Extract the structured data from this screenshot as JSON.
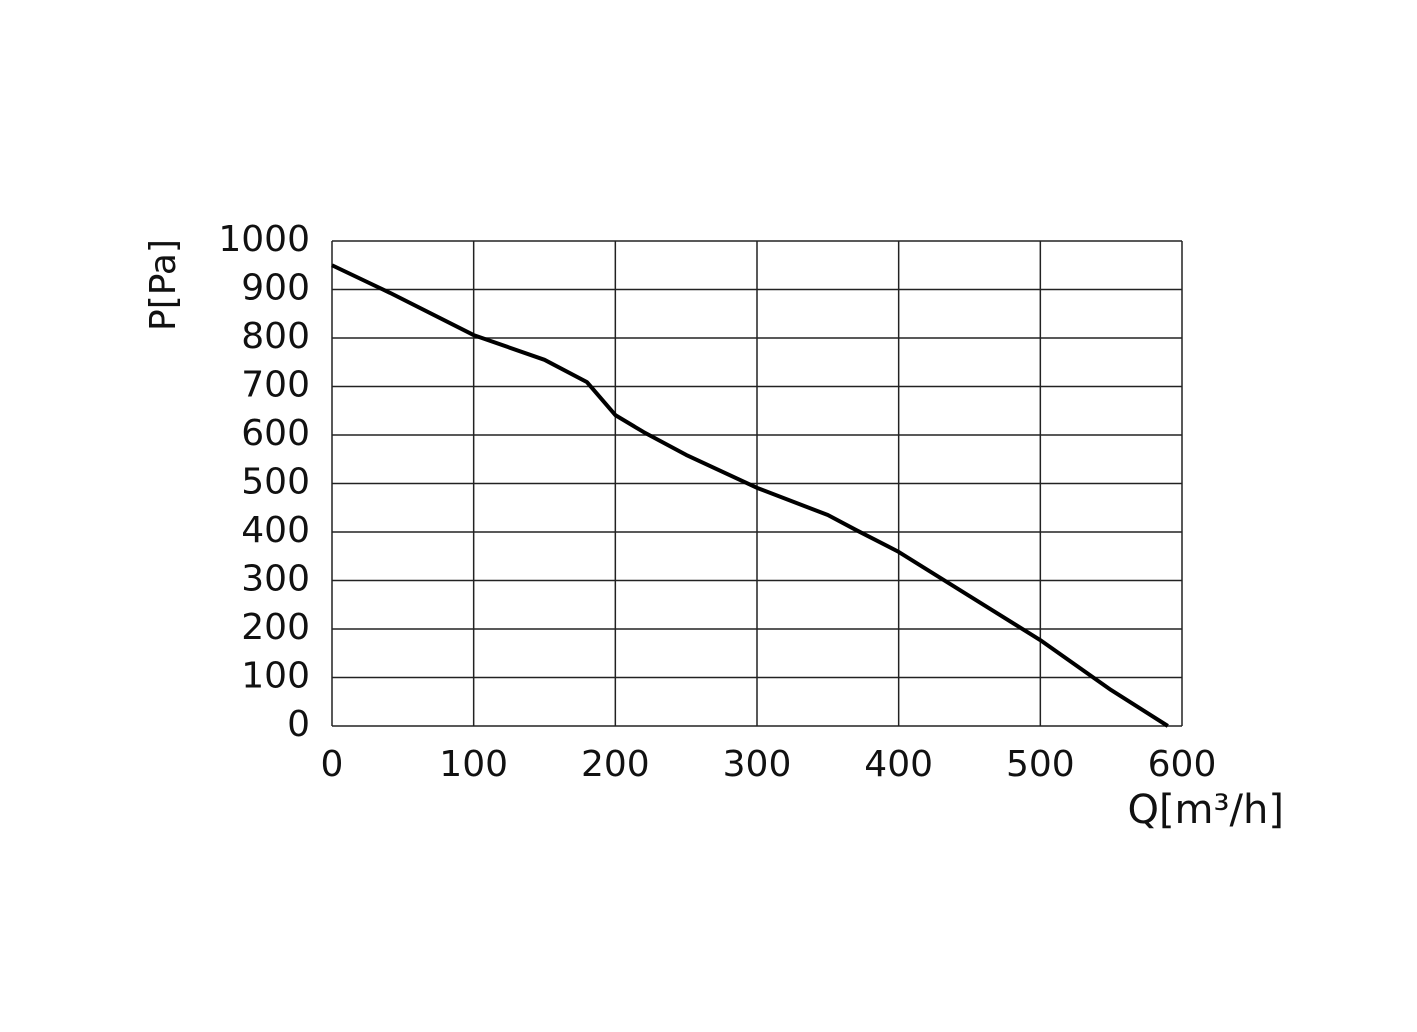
{
  "chart_data": {
    "type": "line",
    "x_label": "Q[m³/h]",
    "y_label": "P[Pa]",
    "x": [
      0,
      41,
      100,
      150,
      180,
      200,
      220,
      250,
      300,
      350,
      370,
      400,
      450,
      500,
      550,
      590
    ],
    "series": [
      {
        "color": "#000000",
        "values": [
          950,
          893,
          806,
          755,
          709,
          641,
          606,
          559,
          491,
          435,
          404,
          359,
          268,
          177,
          74,
          0
        ]
      }
    ],
    "xlim": [
      0,
      600
    ],
    "xticks": [
      0,
      100,
      200,
      300,
      400,
      500,
      600
    ],
    "ylim": [
      0,
      1000
    ],
    "yticks": [
      0,
      100,
      200,
      300,
      400,
      500,
      600,
      700,
      800,
      900,
      1000
    ],
    "grid": true
  }
}
